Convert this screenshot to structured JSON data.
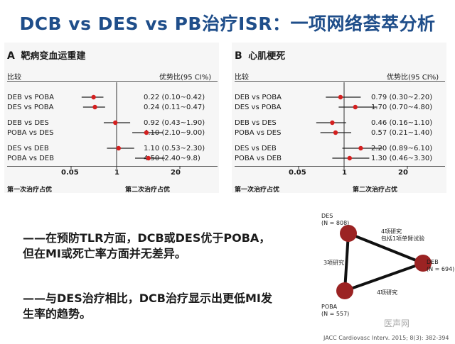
{
  "title": "DCB vs DES vs PB治疗ISR：一项网络荟萃分析",
  "panels": [
    {
      "letter": "A",
      "label": "靶病变血运重建",
      "col_left": "比较",
      "col_right": "优势比(95 CI%)",
      "favor_left": "第一次治疗占优",
      "favor_right": "第二次治疗占优",
      "ticks": [
        "0.05",
        "1",
        "20"
      ],
      "rows": [
        {
          "comparison": "DEB vs POBA",
          "text": "0.22 (0.10~0.42)",
          "or": 0.22,
          "lo": 0.1,
          "hi": 0.42
        },
        {
          "comparison": "DES vs POBA",
          "text": "0.24 (0.11~0.47)",
          "or": 0.24,
          "lo": 0.11,
          "hi": 0.47
        },
        {
          "comparison": "DEB vs DES",
          "text": "0.92 (0.43~1.90)",
          "or": 0.92,
          "lo": 0.43,
          "hi": 1.9
        },
        {
          "comparison": "POBA vs DES",
          "text": "4.10 (2.10~9.00)",
          "or": 4.1,
          "lo": 2.1,
          "hi": 9.0
        },
        {
          "comparison": "DES vs DEB",
          "text": "1.10 (0.53~2.30)",
          "or": 1.1,
          "lo": 0.53,
          "hi": 2.3
        },
        {
          "comparison": "POBA vs DEB",
          "text": "4.50 (2.40~9.8)",
          "or": 4.5,
          "lo": 2.4,
          "hi": 9.8
        }
      ]
    },
    {
      "letter": "B",
      "label": "心肌梗死",
      "col_left": "比较",
      "col_right": "优势比(95 CI%)",
      "favor_left": "第一次治疗占优",
      "favor_right": "第二次治疗占优",
      "ticks": [
        "0.05",
        "1",
        "20"
      ],
      "rows": [
        {
          "comparison": "DEB vs POBA",
          "text": "0.79 (0.30~2.20)",
          "or": 0.79,
          "lo": 0.3,
          "hi": 2.2
        },
        {
          "comparison": "DES vs POBA",
          "text": "1.70 (0.70~4.80)",
          "or": 1.7,
          "lo": 0.7,
          "hi": 4.8
        },
        {
          "comparison": "DEB vs DES",
          "text": "0.46 (0.16~1.10)",
          "or": 0.46,
          "lo": 0.16,
          "hi": 1.1
        },
        {
          "comparison": "POBA vs DES",
          "text": "0.57 (0.21~1.40)",
          "or": 0.57,
          "lo": 0.21,
          "hi": 1.4
        },
        {
          "comparison": "DES vs DEB",
          "text": "2.20 (0.89~6.10)",
          "or": 2.2,
          "lo": 0.89,
          "hi": 6.1
        },
        {
          "comparison": "POBA vs DEB",
          "text": "1.30 (0.46~3.30)",
          "or": 1.3,
          "lo": 0.46,
          "hi": 3.3
        }
      ]
    }
  ],
  "bullets": [
    "——在预防TLR方面，DCB或DES优于POBA，但在MI或死亡率方面并无差异。",
    "——与DES治疗相比，DCB治疗显示出更低MI发生率的趋势。"
  ],
  "network": {
    "nodes": [
      {
        "name": "DES",
        "n": "(N = 808)"
      },
      {
        "name": "DEB",
        "n": "(N = 694)"
      },
      {
        "name": "POBA",
        "n": "(N = 557)"
      }
    ],
    "edges": [
      {
        "label": "4项研究",
        "sub": "包括1项单臂试验"
      },
      {
        "label": "3项研究",
        "sub": ""
      },
      {
        "label": "4项研究",
        "sub": ""
      }
    ],
    "node_color": "#9b2323",
    "edge_color": "#111111"
  },
  "citation": "JACC Cardiovasc Interv. 2015; 8(3): 382-394",
  "watermark": "医声网",
  "colors": {
    "title": "#1f4e8a",
    "point": "#d42020"
  }
}
